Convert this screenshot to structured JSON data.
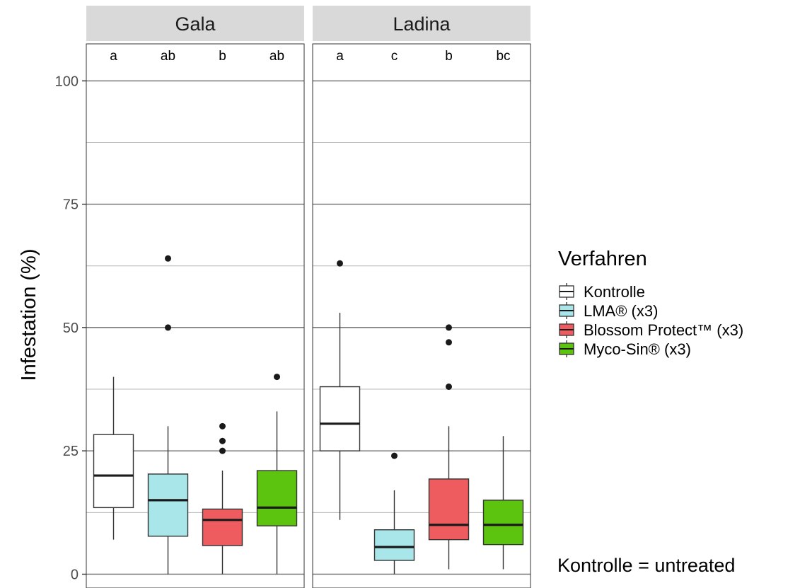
{
  "chart_data": {
    "type": "box",
    "ylabel": "Infestation (%)",
    "y_ticks": [
      0,
      25,
      50,
      75,
      100
    ],
    "ylim": [
      -2.8,
      107.5
    ],
    "grid": true,
    "legend": {
      "title": "Verfahren",
      "placement": "right",
      "items": [
        {
          "label": "Kontrolle",
          "color": "#ffffff"
        },
        {
          "label": "LMA® (x3)",
          "color": "#a8e6ea"
        },
        {
          "label": "Blossom Protect™ (x3)",
          "color": "#ee5c5f"
        },
        {
          "label": "Myco-Sin® (x3)",
          "color": "#5cc30f"
        }
      ]
    },
    "annotation": "Kontrolle = untreated",
    "panels": [
      {
        "title": "Gala",
        "boxes": [
          {
            "series": "Kontrolle",
            "letter": "a",
            "whisker_low": 7,
            "q1": 13.5,
            "median": 20,
            "q3": 28.3,
            "whisker_high": 40,
            "outliers": []
          },
          {
            "series": "LMA® (x3)",
            "letter": "ab",
            "whisker_low": 0,
            "q1": 7.7,
            "median": 15,
            "q3": 20.3,
            "whisker_high": 30,
            "outliers": [
              50,
              64
            ]
          },
          {
            "series": "Blossom Protect™ (x3)",
            "letter": "b",
            "whisker_low": 0,
            "q1": 5.8,
            "median": 11,
            "q3": 13.2,
            "whisker_high": 21,
            "outliers": [
              25,
              27,
              30
            ]
          },
          {
            "series": "Myco-Sin® (x3)",
            "letter": "ab",
            "whisker_low": 0,
            "q1": 9.8,
            "median": 13.5,
            "q3": 21,
            "whisker_high": 33,
            "outliers": [
              40
            ]
          }
        ]
      },
      {
        "title": "Ladina",
        "boxes": [
          {
            "series": "Kontrolle",
            "letter": "a",
            "whisker_low": 11,
            "q1": 25,
            "median": 30.5,
            "q3": 38,
            "whisker_high": 53,
            "outliers": [
              63
            ]
          },
          {
            "series": "LMA® (x3)",
            "letter": "c",
            "whisker_low": 0,
            "q1": 2.8,
            "median": 5.5,
            "q3": 9,
            "whisker_high": 17,
            "outliers": [
              24
            ]
          },
          {
            "series": "Blossom Protect™ (x3)",
            "letter": "b",
            "whisker_low": 1,
            "q1": 7,
            "median": 10,
            "q3": 19.3,
            "whisker_high": 30,
            "outliers": [
              38,
              47,
              50
            ]
          },
          {
            "series": "Myco-Sin® (x3)",
            "letter": "bc",
            "whisker_low": 1,
            "q1": 6,
            "median": 10,
            "q3": 15,
            "whisker_high": 28,
            "outliers": []
          }
        ]
      }
    ]
  }
}
